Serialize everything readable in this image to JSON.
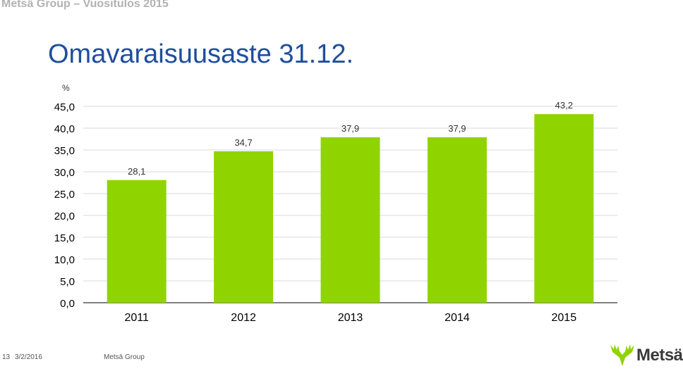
{
  "header": {
    "text": "Metsä Group – Vuositulos 2015"
  },
  "title": "Omavaraisuusaste 31.12.",
  "chart_data": {
    "type": "bar",
    "unit_label": "%",
    "categories": [
      "2011",
      "2012",
      "2013",
      "2014",
      "2015"
    ],
    "values": [
      28.1,
      34.7,
      37.9,
      37.9,
      43.2
    ],
    "value_labels": [
      "28,1",
      "34,7",
      "37,9",
      "37,9",
      "43,2"
    ],
    "ylim": [
      0,
      45
    ],
    "yticks": [
      0,
      5,
      10,
      15,
      20,
      25,
      30,
      35,
      40,
      45
    ],
    "ytick_labels": [
      "0,0",
      "5,0",
      "10,0",
      "15,0",
      "20,0",
      "25,0",
      "30,0",
      "35,0",
      "40,0",
      "45,0"
    ],
    "grid": true,
    "bar_color": "#8fd400"
  },
  "footer": {
    "page_number": "13",
    "date": "3/2/2016",
    "company": "Metsä Group"
  },
  "logo": {
    "text": "Metsä",
    "icon": "moose-antlers-icon",
    "icon_color": "#8fd400"
  }
}
